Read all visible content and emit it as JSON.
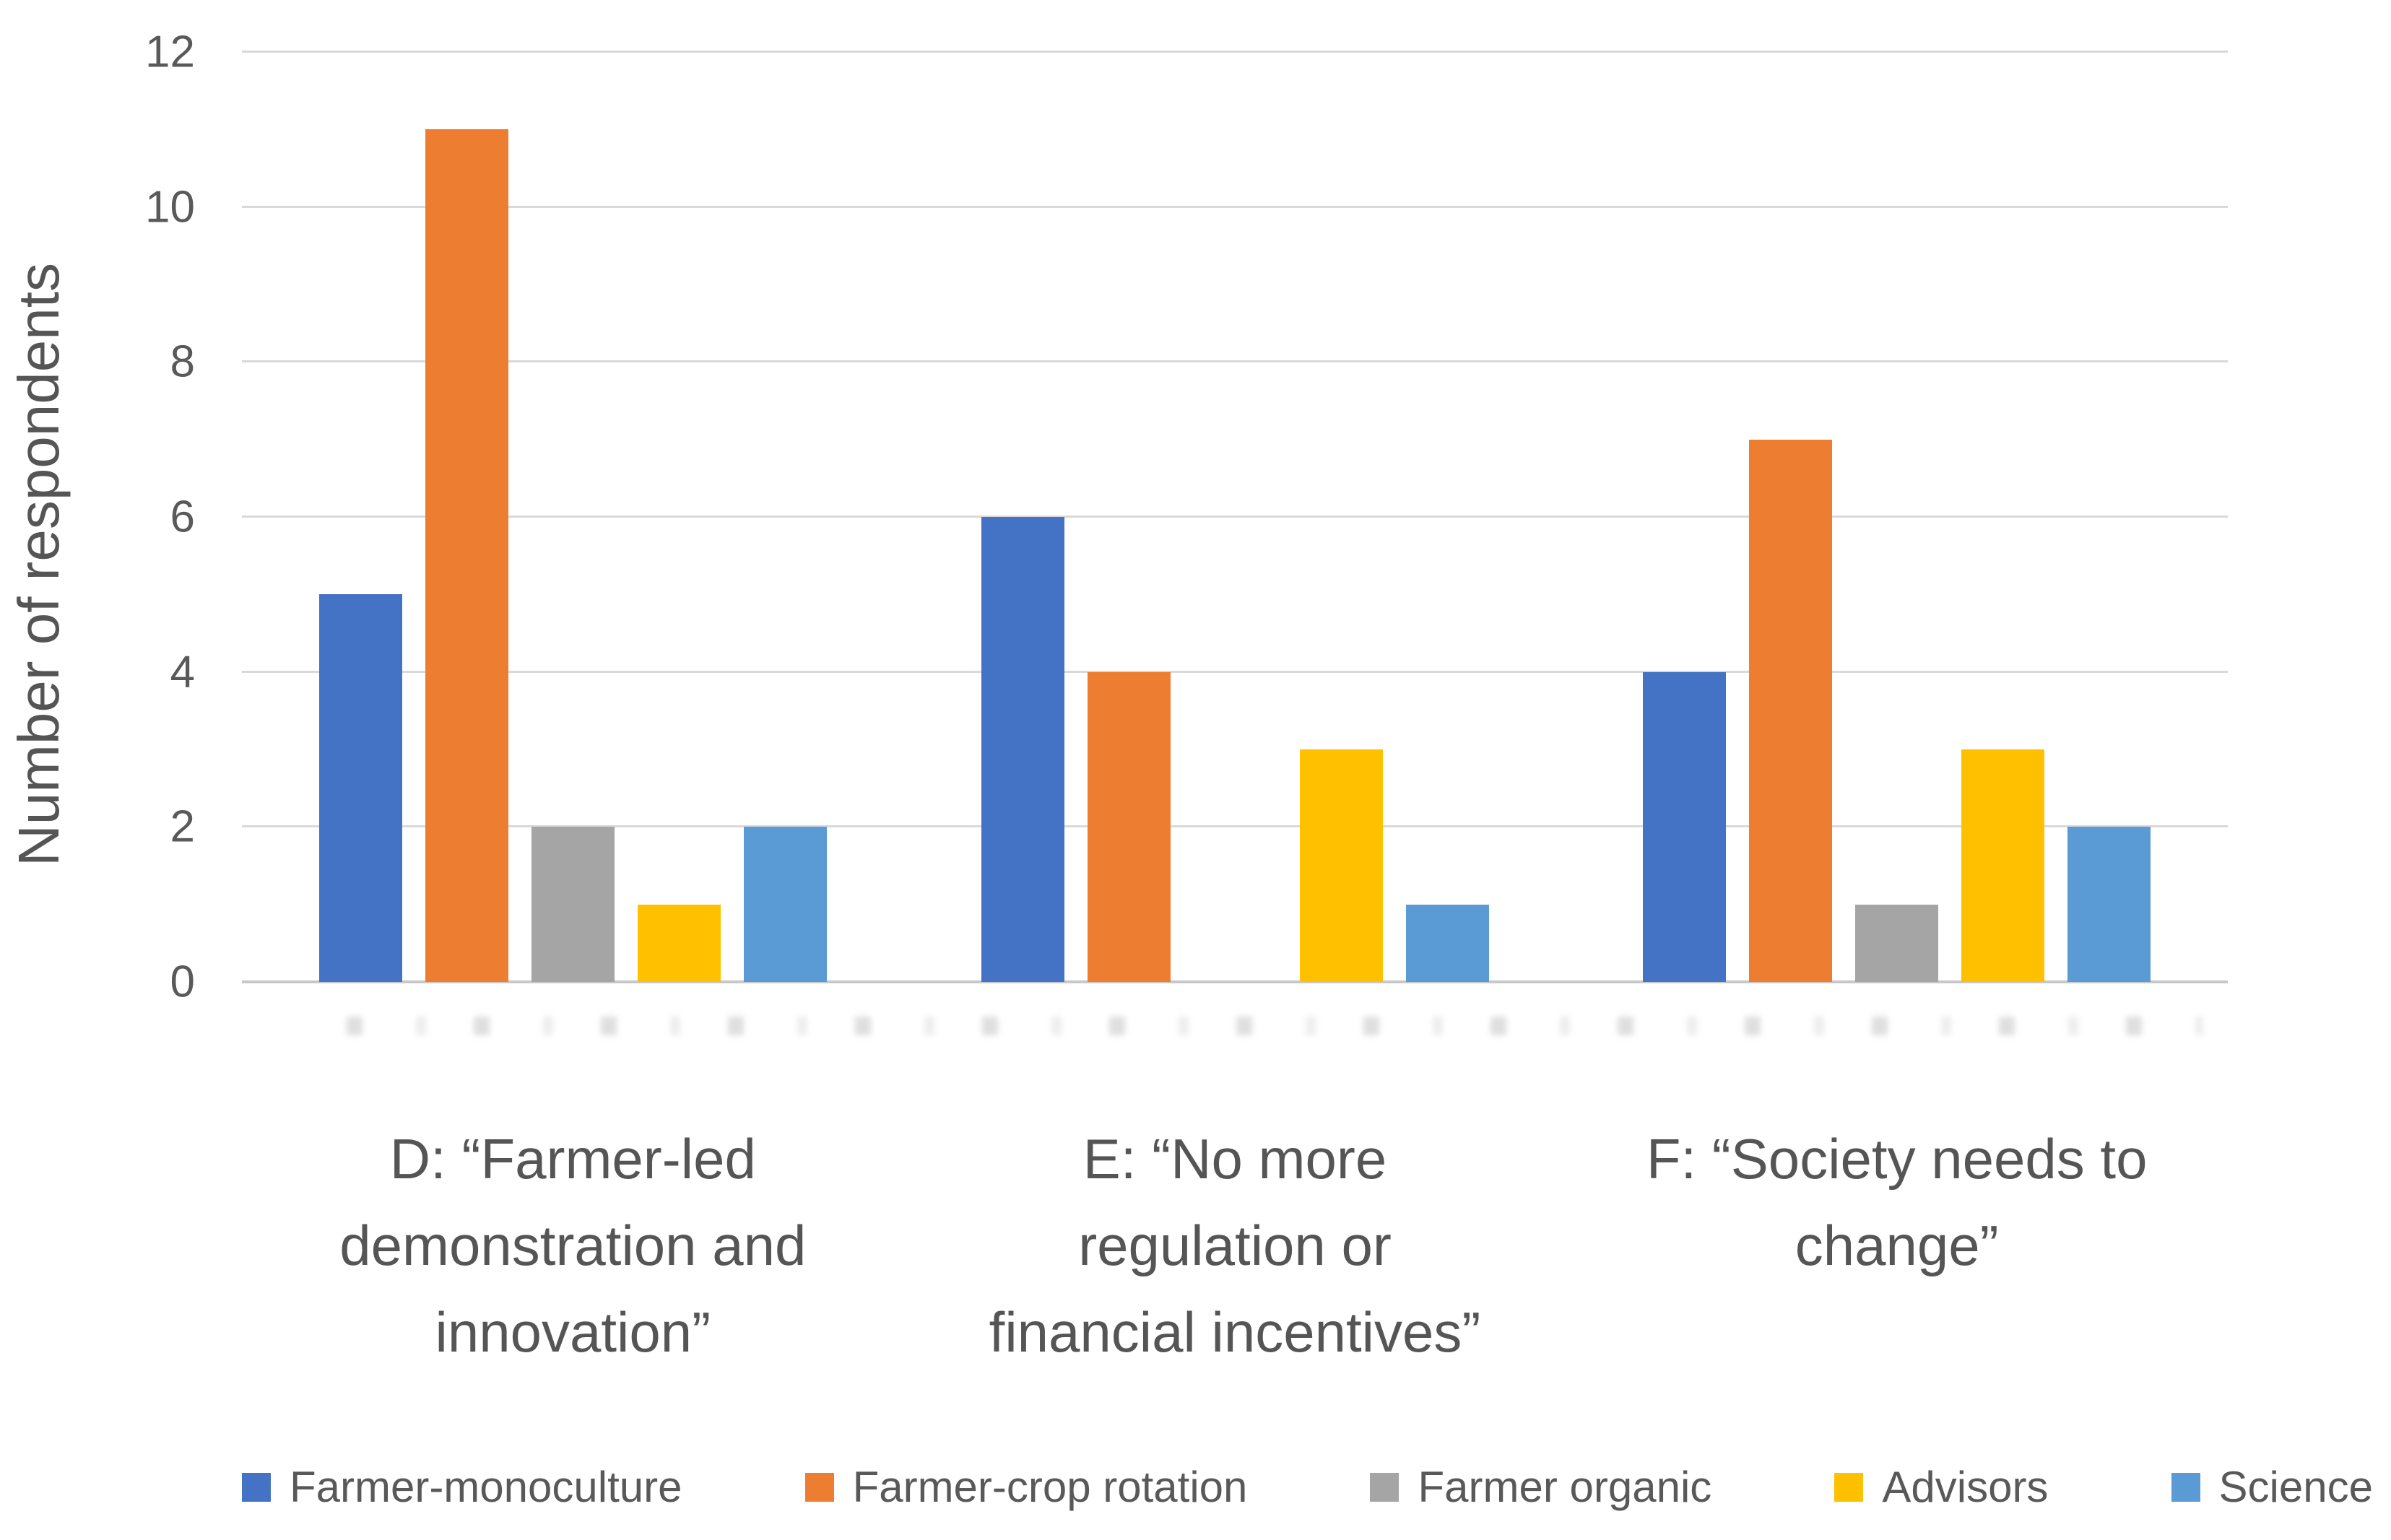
{
  "chart_data": {
    "type": "bar",
    "title": "",
    "xlabel": "",
    "ylabel": "Number of respondents",
    "ylim": [
      0,
      12
    ],
    "yticks": [
      0,
      2,
      4,
      6,
      8,
      10,
      12
    ],
    "grid": true,
    "legend_position": "bottom",
    "categories": [
      {
        "label": "D: “Farmer-led demonstration and innovation”",
        "lines": [
          "D: “Farmer-led",
          "demonstration and",
          "innovation”"
        ]
      },
      {
        "label": "E: “No more regulation or financial incentives”",
        "lines": [
          "E: “No more",
          "regulation or",
          "financial incentives”"
        ]
      },
      {
        "label": "F: “Society needs to change”",
        "lines": [
          "F: “Society needs to",
          "change”"
        ]
      }
    ],
    "series": [
      {
        "name": "Farmer-monoculture",
        "color": "#4472C4",
        "values": [
          5,
          6,
          4
        ]
      },
      {
        "name": "Farmer-crop rotation",
        "color": "#ED7D31",
        "values": [
          11,
          4,
          7
        ]
      },
      {
        "name": "Farmer organic",
        "color": "#A5A5A5",
        "values": [
          2,
          0,
          1
        ]
      },
      {
        "name": "Advisors",
        "color": "#FFC000",
        "values": [
          1,
          3,
          3
        ]
      },
      {
        "name": "Science",
        "color": "#5B9BD5",
        "values": [
          2,
          1,
          2
        ]
      }
    ],
    "colors": {
      "grid": "#D9D9D9",
      "axis": "#C8C8C8",
      "text": "#595959"
    }
  }
}
